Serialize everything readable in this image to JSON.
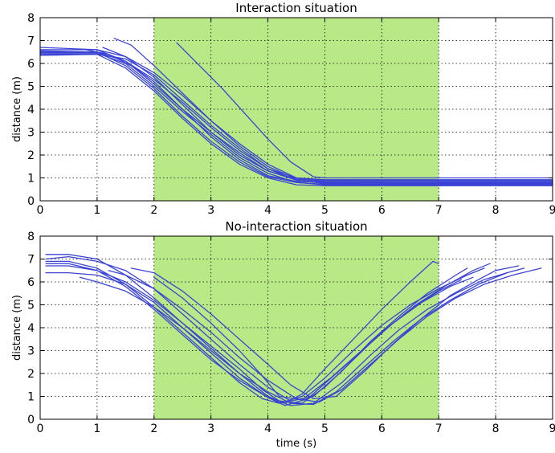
{
  "chart_data": [
    {
      "type": "line",
      "title": "Interaction situation",
      "xlabel": "",
      "ylabel": "distance (m)",
      "xlim": [
        0,
        9
      ],
      "ylim": [
        0,
        8
      ],
      "xticks": [
        "0",
        "1",
        "2",
        "3",
        "4",
        "5",
        "6",
        "7",
        "8",
        "9"
      ],
      "yticks": [
        "0",
        "1",
        "2",
        "3",
        "4",
        "5",
        "6",
        "7",
        "8"
      ],
      "grid": true,
      "highlight": {
        "x_from": 2,
        "x_to": 7,
        "color": "#b8e986"
      },
      "line_color": "#3a43d4",
      "series": [
        {
          "x": [
            0,
            1.0,
            1.5,
            2.0,
            2.5,
            3.0,
            3.5,
            4.0,
            4.5,
            5.0,
            6.0,
            7.0,
            8.0,
            9.0
          ],
          "y": [
            6.7,
            6.6,
            6.1,
            5.3,
            4.3,
            3.2,
            2.2,
            1.4,
            1.0,
            0.92,
            0.92,
            0.92,
            0.92,
            0.92
          ]
        },
        {
          "x": [
            0,
            1.0,
            1.5,
            2.0,
            2.5,
            3.0,
            3.5,
            4.0,
            4.5,
            5.0,
            6.0,
            7.0,
            8.0,
            9.0
          ],
          "y": [
            6.6,
            6.6,
            6.3,
            5.6,
            4.6,
            3.5,
            2.5,
            1.6,
            1.0,
            0.85,
            0.85,
            0.85,
            0.85,
            0.85
          ]
        },
        {
          "x": [
            0,
            1.0,
            1.5,
            2.0,
            2.5,
            3.0,
            3.5,
            4.0,
            4.5,
            5.0,
            6.0,
            7.0,
            8.0,
            9.0
          ],
          "y": [
            6.5,
            6.5,
            6.1,
            5.2,
            4.0,
            2.8,
            1.8,
            1.1,
            0.85,
            0.8,
            0.8,
            0.8,
            0.8,
            0.8
          ]
        },
        {
          "x": [
            0,
            1.0,
            1.5,
            2.0,
            2.5,
            3.0,
            3.5,
            4.0,
            4.5,
            5.0,
            6.0,
            7.0,
            8.0,
            9.0
          ],
          "y": [
            6.45,
            6.45,
            6.0,
            5.0,
            3.9,
            2.9,
            1.9,
            1.2,
            0.8,
            0.72,
            0.72,
            0.72,
            0.72,
            0.72
          ]
        },
        {
          "x": [
            0,
            1.0,
            1.5,
            2.0,
            2.5,
            3.0,
            3.5,
            4.0,
            4.5,
            5.0,
            6.0,
            7.0,
            8.0,
            9.0
          ],
          "y": [
            6.4,
            6.4,
            5.8,
            4.8,
            3.6,
            2.5,
            1.6,
            1.0,
            0.7,
            0.66,
            0.66,
            0.66,
            0.66,
            0.66
          ]
        },
        {
          "x": [
            0,
            1.0,
            1.5,
            2.0,
            2.5,
            3.0,
            3.5,
            4.0,
            4.5,
            5.0,
            6.0,
            7.0,
            8.0,
            9.0
          ],
          "y": [
            6.35,
            6.4,
            6.2,
            5.5,
            4.4,
            3.3,
            2.3,
            1.4,
            0.9,
            0.75,
            0.72,
            0.72,
            0.72,
            0.72
          ]
        },
        {
          "x": [
            1.3,
            1.6,
            2.0,
            2.5,
            3.0,
            3.5,
            4.0,
            4.5,
            5.0,
            6.0,
            7.0,
            8.0,
            9.0
          ],
          "y": [
            7.1,
            6.8,
            5.9,
            4.7,
            3.5,
            2.4,
            1.5,
            0.95,
            0.82,
            0.8,
            0.8,
            0.8,
            0.8
          ]
        },
        {
          "x": [
            1.1,
            1.5,
            2.0,
            2.5,
            3.0,
            3.5,
            4.0,
            4.5,
            5.0,
            6.0,
            7.0,
            8.0,
            9.0
          ],
          "y": [
            6.7,
            6.3,
            5.4,
            4.2,
            3.0,
            2.0,
            1.3,
            0.95,
            0.9,
            0.9,
            0.9,
            0.9,
            0.9
          ]
        },
        {
          "x": [
            0.8,
            1.2,
            1.6,
            2.0,
            2.5,
            3.0,
            3.5,
            4.0,
            4.5,
            5.0,
            6.0,
            7.0,
            8.0,
            9.0
          ],
          "y": [
            6.6,
            6.4,
            5.9,
            5.1,
            4.0,
            3.0,
            2.1,
            1.3,
            0.9,
            0.78,
            0.76,
            0.76,
            0.76,
            0.76
          ]
        },
        {
          "x": [
            0,
            1.0,
            1.5,
            2.0,
            2.5,
            3.0,
            3.5,
            4.0,
            4.5,
            5.0,
            6.0,
            7.0,
            8.0,
            9.0
          ],
          "y": [
            6.55,
            6.5,
            5.9,
            4.9,
            3.7,
            2.6,
            1.7,
            1.05,
            0.8,
            0.7,
            0.7,
            0.7,
            0.7,
            0.7
          ]
        },
        {
          "x": [
            2.4,
            2.8,
            3.2,
            3.6,
            4.0,
            4.4,
            4.8,
            5.0,
            5.5,
            6.0,
            7.0,
            8.0,
            9.0
          ],
          "y": [
            6.9,
            5.9,
            4.9,
            3.8,
            2.7,
            1.7,
            1.05,
            1.0,
            1.0,
            1.0,
            1.0,
            1.0,
            1.0
          ]
        }
      ]
    },
    {
      "type": "line",
      "title": "No-interaction situation",
      "xlabel": "time (s)",
      "ylabel": "distance (m)",
      "xlim": [
        0,
        9
      ],
      "ylim": [
        0,
        8
      ],
      "xticks": [
        "0",
        "1",
        "2",
        "3",
        "4",
        "5",
        "6",
        "7",
        "8",
        "9"
      ],
      "yticks": [
        "0",
        "1",
        "2",
        "3",
        "4",
        "5",
        "6",
        "7",
        "8"
      ],
      "grid": true,
      "highlight": {
        "x_from": 2,
        "x_to": 7,
        "color": "#b8e986"
      },
      "line_color": "#3a43d4",
      "series": [
        {
          "x": [
            0.1,
            0.5,
            1.0,
            1.5,
            2.0,
            2.5,
            3.0,
            3.5,
            4.0,
            4.3,
            4.6,
            5.0,
            5.5,
            6.0,
            6.5,
            6.9,
            7.0
          ],
          "y": [
            7.2,
            7.2,
            7.0,
            6.3,
            5.3,
            4.2,
            3.1,
            2.0,
            1.0,
            0.7,
            1.1,
            2.2,
            3.5,
            4.8,
            6.0,
            6.9,
            6.8
          ]
        },
        {
          "x": [
            0.1,
            0.5,
            1.0,
            1.5,
            2.0,
            2.5,
            3.0,
            3.5,
            4.0,
            4.4,
            4.8,
            5.3,
            5.8,
            6.3,
            6.8,
            7.3,
            7.5
          ],
          "y": [
            7.0,
            7.1,
            6.9,
            6.5,
            5.7,
            4.6,
            3.5,
            2.4,
            1.4,
            0.8,
            1.0,
            2.1,
            3.4,
            4.5,
            5.5,
            6.3,
            6.6
          ]
        },
        {
          "x": [
            0.1,
            0.5,
            1.0,
            1.5,
            2.0,
            2.5,
            3.0,
            3.5,
            3.9,
            4.2,
            4.6,
            5.0,
            5.5,
            6.0,
            6.5,
            7.0,
            7.5,
            7.8
          ],
          "y": [
            6.9,
            6.9,
            6.6,
            5.9,
            4.9,
            3.8,
            2.7,
            1.6,
            0.9,
            0.7,
            1.0,
            1.8,
            3.0,
            4.1,
            5.0,
            5.7,
            6.3,
            6.6
          ]
        },
        {
          "x": [
            0.1,
            0.5,
            1.0,
            1.5,
            2.0,
            2.5,
            3.0,
            3.5,
            4.0,
            4.4,
            4.8,
            5.3,
            5.8,
            6.3,
            6.8,
            7.3,
            7.8,
            8.2
          ],
          "y": [
            6.8,
            6.8,
            6.5,
            5.8,
            4.8,
            3.7,
            2.6,
            1.7,
            0.95,
            0.6,
            0.7,
            1.6,
            2.8,
            3.9,
            4.8,
            5.5,
            6.1,
            6.4
          ]
        },
        {
          "x": [
            0.1,
            0.5,
            1.0,
            1.5,
            2.0,
            2.5,
            3.0,
            3.5,
            4.0,
            4.3,
            4.7,
            5.2,
            5.7,
            6.2,
            6.7,
            7.2,
            7.6
          ],
          "y": [
            6.4,
            6.4,
            6.3,
            5.9,
            5.1,
            4.0,
            2.9,
            1.8,
            0.95,
            0.6,
            0.9,
            2.0,
            3.1,
            4.2,
            5.1,
            5.8,
            6.2
          ]
        },
        {
          "x": [
            0.7,
            1.0,
            1.5,
            2.0,
            2.5,
            3.0,
            3.5,
            4.0,
            4.4,
            4.8,
            5.2,
            5.7,
            6.2,
            6.7,
            7.2,
            7.7,
            8.2,
            8.5
          ],
          "y": [
            6.2,
            6.0,
            5.6,
            4.9,
            4.0,
            3.0,
            2.0,
            1.2,
            0.7,
            0.65,
            1.2,
            2.3,
            3.4,
            4.4,
            5.2,
            5.9,
            6.4,
            6.6
          ]
        },
        {
          "x": [
            1.2,
            1.5,
            2.0,
            2.5,
            3.0,
            3.5,
            4.0,
            4.5,
            4.9,
            5.3,
            5.8,
            6.3,
            6.8,
            7.3,
            7.8,
            8.3,
            8.8
          ],
          "y": [
            6.5,
            6.3,
            5.7,
            4.8,
            3.8,
            2.7,
            1.7,
            0.9,
            0.75,
            1.3,
            2.4,
            3.5,
            4.5,
            5.3,
            5.9,
            6.3,
            6.6
          ]
        },
        {
          "x": [
            1.6,
            2.0,
            2.5,
            3.0,
            3.5,
            4.0,
            4.4,
            4.8,
            5.2,
            5.7,
            6.2,
            6.7,
            7.2,
            7.7,
            8.0,
            8.4
          ],
          "y": [
            6.6,
            6.4,
            5.6,
            4.6,
            3.5,
            2.4,
            1.5,
            0.9,
            1.0,
            2.1,
            3.3,
            4.4,
            5.4,
            6.1,
            6.5,
            6.7
          ]
        },
        {
          "x": [
            2.0,
            2.5,
            3.0,
            3.5,
            3.9,
            4.2,
            4.6,
            5.1,
            5.6,
            6.1,
            6.6,
            7.1,
            7.6,
            7.9
          ],
          "y": [
            6.2,
            5.3,
            4.2,
            3.0,
            1.9,
            1.0,
            0.85,
            1.8,
            2.9,
            4.0,
            5.0,
            5.8,
            6.5,
            6.8
          ]
        },
        {
          "x": [
            0.1,
            0.5,
            1.0,
            1.5,
            2.0,
            2.5,
            3.0,
            3.5,
            3.9,
            4.2,
            4.6,
            5.0,
            5.5,
            6.0,
            6.5,
            7.0,
            7.4
          ],
          "y": [
            6.7,
            6.7,
            6.5,
            6.0,
            5.2,
            4.2,
            3.2,
            2.2,
            1.3,
            0.8,
            0.7,
            1.4,
            2.6,
            3.8,
            4.8,
            5.6,
            6.1
          ]
        }
      ]
    }
  ]
}
